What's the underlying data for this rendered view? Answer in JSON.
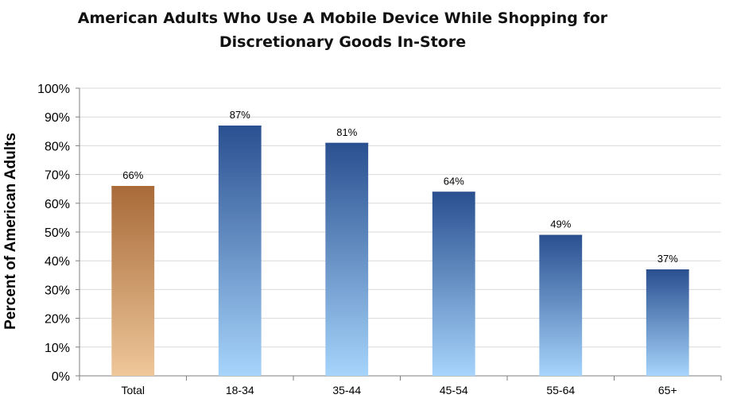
{
  "chart_data": {
    "type": "bar",
    "title": "American Adults Who Use A Mobile Device While Shopping for Discretionary Goods In-Store",
    "title_lines": [
      "American Adults Who Use A Mobile Device While Shopping for",
      "Discretionary Goods In-Store"
    ],
    "xlabel": "",
    "ylabel": "Percent of American Adults",
    "categories": [
      "Total",
      "18-34",
      "35-44",
      "45-54",
      "55-64",
      "65+"
    ],
    "values": [
      66,
      87,
      81,
      64,
      49,
      37
    ],
    "data_labels": [
      "66%",
      "87%",
      "81%",
      "64%",
      "49%",
      "37%"
    ],
    "ylim": [
      0,
      100
    ],
    "yticks": [
      0,
      10,
      20,
      30,
      40,
      50,
      60,
      70,
      80,
      90,
      100
    ],
    "ytick_labels": [
      "0%",
      "10%",
      "20%",
      "30%",
      "40%",
      "50%",
      "60%",
      "70%",
      "80%",
      "90%",
      "100%"
    ],
    "grid": true,
    "legend": "none",
    "colors": {
      "highlight_top": "#a86a38",
      "highlight_bottom": "#eec79a",
      "bar_top": "#2a5090",
      "bar_bottom": "#a6d4fb",
      "grid": "#d9d9d9",
      "axis": "#7f7f7f"
    }
  }
}
